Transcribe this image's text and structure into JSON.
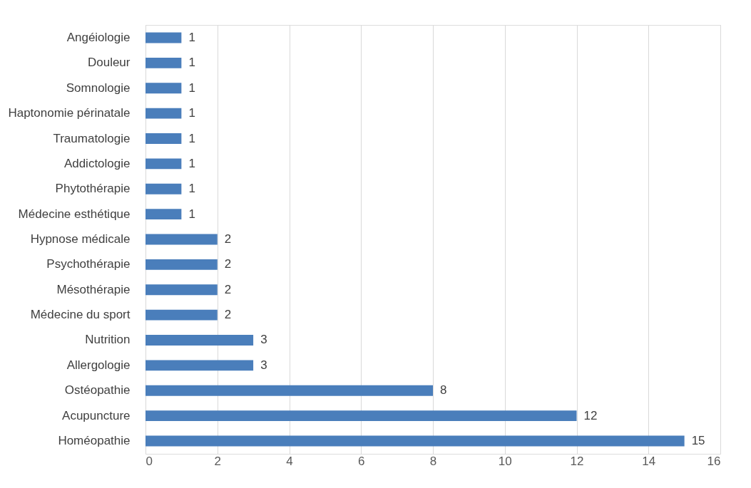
{
  "chart_data": {
    "type": "bar",
    "orientation": "horizontal",
    "categories": [
      "Angéiologie",
      "Douleur",
      "Somnologie",
      "Haptonomie périnatale",
      "Traumatologie",
      "Addictologie",
      "Phytothérapie",
      "Médecine esthétique",
      "Hypnose médicale",
      "Psychothérapie",
      "Mésothérapie",
      "Médecine du sport",
      "Nutrition",
      "Allergologie",
      "Ostéopathie",
      "Acupuncture",
      "Homéopathie"
    ],
    "values": [
      1,
      1,
      1,
      1,
      1,
      1,
      1,
      1,
      2,
      2,
      2,
      2,
      3,
      3,
      8,
      12,
      15
    ],
    "color": "#4a7ebb",
    "xlim": [
      0,
      16
    ],
    "xticks": [
      0,
      2,
      4,
      6,
      8,
      10,
      12,
      14,
      16
    ],
    "grid": "x",
    "data_labels": true
  }
}
